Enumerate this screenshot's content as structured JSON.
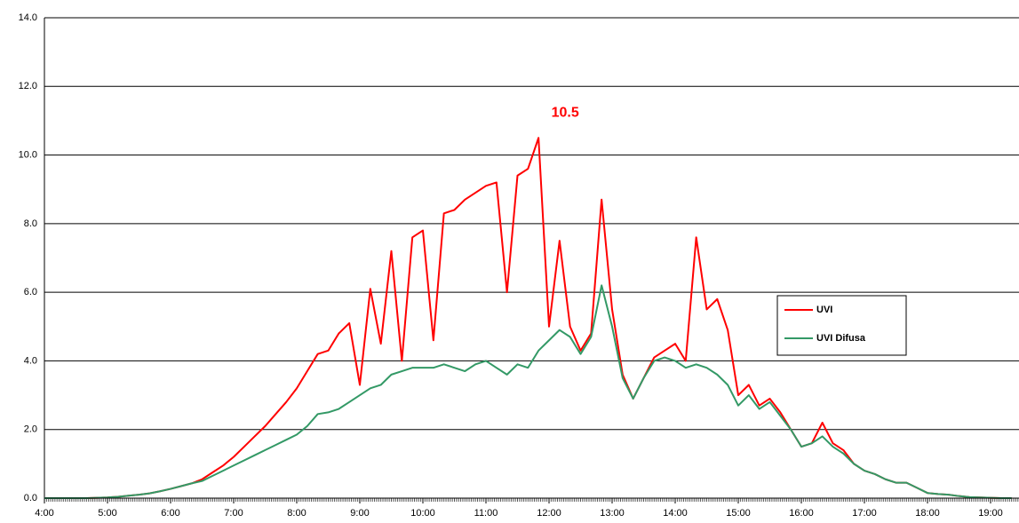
{
  "chart_data": {
    "type": "line",
    "categories": [
      "4:00",
      null,
      null,
      null,
      null,
      null,
      "5:00",
      null,
      null,
      null,
      null,
      null,
      "6:00",
      null,
      null,
      null,
      null,
      null,
      "7:00",
      null,
      null,
      null,
      null,
      null,
      "8:00",
      null,
      null,
      null,
      null,
      null,
      "9:00",
      null,
      null,
      null,
      null,
      null,
      "10:00",
      null,
      null,
      null,
      null,
      null,
      "11:00",
      null,
      null,
      null,
      null,
      null,
      "12:00",
      null,
      null,
      null,
      null,
      null,
      "13:00",
      null,
      null,
      null,
      null,
      null,
      "14:00",
      null,
      null,
      null,
      null,
      null,
      "15:00",
      null,
      null,
      null,
      null,
      null,
      "16:00",
      null,
      null,
      null,
      null,
      null,
      "17:00",
      null,
      null,
      null,
      null,
      null,
      "18:00",
      null,
      null,
      null,
      null,
      null,
      "19:00",
      null,
      null
    ],
    "series": [
      {
        "name": "UVI",
        "color": "#ff0000",
        "values": [
          0,
          0,
          0,
          0,
          0,
          0.01,
          0.02,
          0.04,
          0.07,
          0.1,
          0.14,
          0.2,
          0.27,
          0.35,
          0.43,
          0.55,
          0.75,
          0.95,
          1.2,
          1.5,
          1.8,
          2.1,
          2.45,
          2.8,
          3.2,
          3.7,
          4.2,
          4.3,
          4.8,
          5.1,
          3.3,
          6.1,
          4.5,
          7.2,
          4.0,
          7.6,
          7.8,
          4.6,
          8.3,
          8.4,
          8.7,
          8.9,
          9.1,
          9.2,
          6.0,
          9.4,
          9.6,
          10.5,
          5.0,
          7.5,
          5.0,
          4.3,
          4.8,
          8.7,
          5.5,
          3.6,
          2.9,
          3.5,
          4.1,
          4.3,
          4.5,
          4.0,
          7.6,
          5.5,
          5.8,
          4.9,
          3.0,
          3.3,
          2.7,
          2.9,
          2.5,
          2.0,
          1.5,
          1.6,
          2.2,
          1.6,
          1.4,
          1.0,
          0.8,
          0.7,
          0.55,
          0.45,
          0.45,
          0.3,
          0.15,
          0.12,
          0.1,
          0.06,
          0.03,
          0.02,
          0.01,
          0,
          0
        ]
      },
      {
        "name": "UVI Difusa",
        "color": "#339966",
        "values": [
          0,
          0,
          0,
          0,
          0,
          0.01,
          0.02,
          0.04,
          0.07,
          0.1,
          0.14,
          0.2,
          0.27,
          0.35,
          0.43,
          0.5,
          0.65,
          0.8,
          0.95,
          1.1,
          1.25,
          1.4,
          1.55,
          1.7,
          1.85,
          2.1,
          2.45,
          2.5,
          2.6,
          2.8,
          3.0,
          3.2,
          3.3,
          3.6,
          3.7,
          3.8,
          3.8,
          3.8,
          3.9,
          3.8,
          3.7,
          3.9,
          4.0,
          3.8,
          3.6,
          3.9,
          3.8,
          4.3,
          4.6,
          4.9,
          4.7,
          4.2,
          4.7,
          6.2,
          5.0,
          3.5,
          2.9,
          3.5,
          4.0,
          4.1,
          4.0,
          3.8,
          3.9,
          3.8,
          3.6,
          3.3,
          2.7,
          3.0,
          2.6,
          2.8,
          2.4,
          2.0,
          1.5,
          1.6,
          1.8,
          1.5,
          1.3,
          1.0,
          0.8,
          0.7,
          0.55,
          0.45,
          0.45,
          0.3,
          0.15,
          0.12,
          0.1,
          0.06,
          0.03,
          0.02,
          0.01,
          0,
          0
        ]
      }
    ],
    "annotation": "10.5",
    "ylim": [
      0,
      14
    ],
    "yticks": [
      {
        "value": 0,
        "label": "0.0"
      },
      {
        "value": 2,
        "label": "2.0"
      },
      {
        "value": 4,
        "label": "4.0"
      },
      {
        "value": 6,
        "label": "6.0"
      },
      {
        "value": 8,
        "label": "8.0"
      },
      {
        "value": 10,
        "label": "10.0"
      },
      {
        "value": 12,
        "label": "12.0"
      },
      {
        "value": 14,
        "label": "14.0"
      }
    ],
    "grid": true,
    "legend": "right"
  }
}
